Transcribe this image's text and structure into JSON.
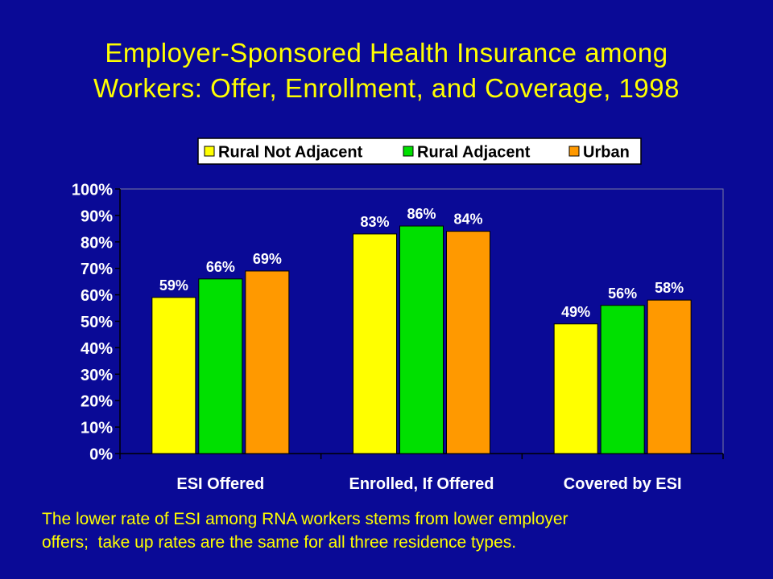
{
  "chart_data": {
    "type": "bar",
    "title": "Employer-Sponsored Health Insurance among\nWorkers:  Offer, Enrollment, and Coverage, 1998",
    "categories": [
      "ESI Offered",
      "Enrolled, If Offered",
      "Covered by ESI"
    ],
    "series": [
      {
        "name": "Rural Not Adjacent",
        "color": "#ffff00",
        "values": [
          59,
          83,
          49
        ],
        "labels": [
          "59%",
          "83%",
          "49%"
        ]
      },
      {
        "name": "Rural Adjacent",
        "color": "#00e000",
        "values": [
          66,
          86,
          56
        ],
        "labels": [
          "66%",
          "86%",
          "56%"
        ]
      },
      {
        "name": "Urban",
        "color": "#ff9900",
        "values": [
          69,
          84,
          58
        ],
        "labels": [
          "69%",
          "84%",
          "58%"
        ]
      }
    ],
    "ylim": [
      0,
      100
    ],
    "yticks": [
      0,
      10,
      20,
      30,
      40,
      50,
      60,
      70,
      80,
      90,
      100
    ],
    "ytick_labels": [
      "0%",
      "10%",
      "20%",
      "30%",
      "40%",
      "50%",
      "60%",
      "70%",
      "80%",
      "90%",
      "100%"
    ],
    "xlabel": "",
    "ylabel": "",
    "grid": false,
    "legend_position": "top",
    "colors": {
      "background": "#0a0a96",
      "plot_background": "#0a0a96",
      "text": "#ffffff",
      "title": "#ffff00",
      "axis": "#000000",
      "legend_background": "#ffffff",
      "legend_text": "#000000"
    }
  },
  "footnote": {
    "line1": "The lower rate of ESI among RNA workers stems from lower employer",
    "line2": "offers;  take up rates are the same for all three residence types."
  }
}
